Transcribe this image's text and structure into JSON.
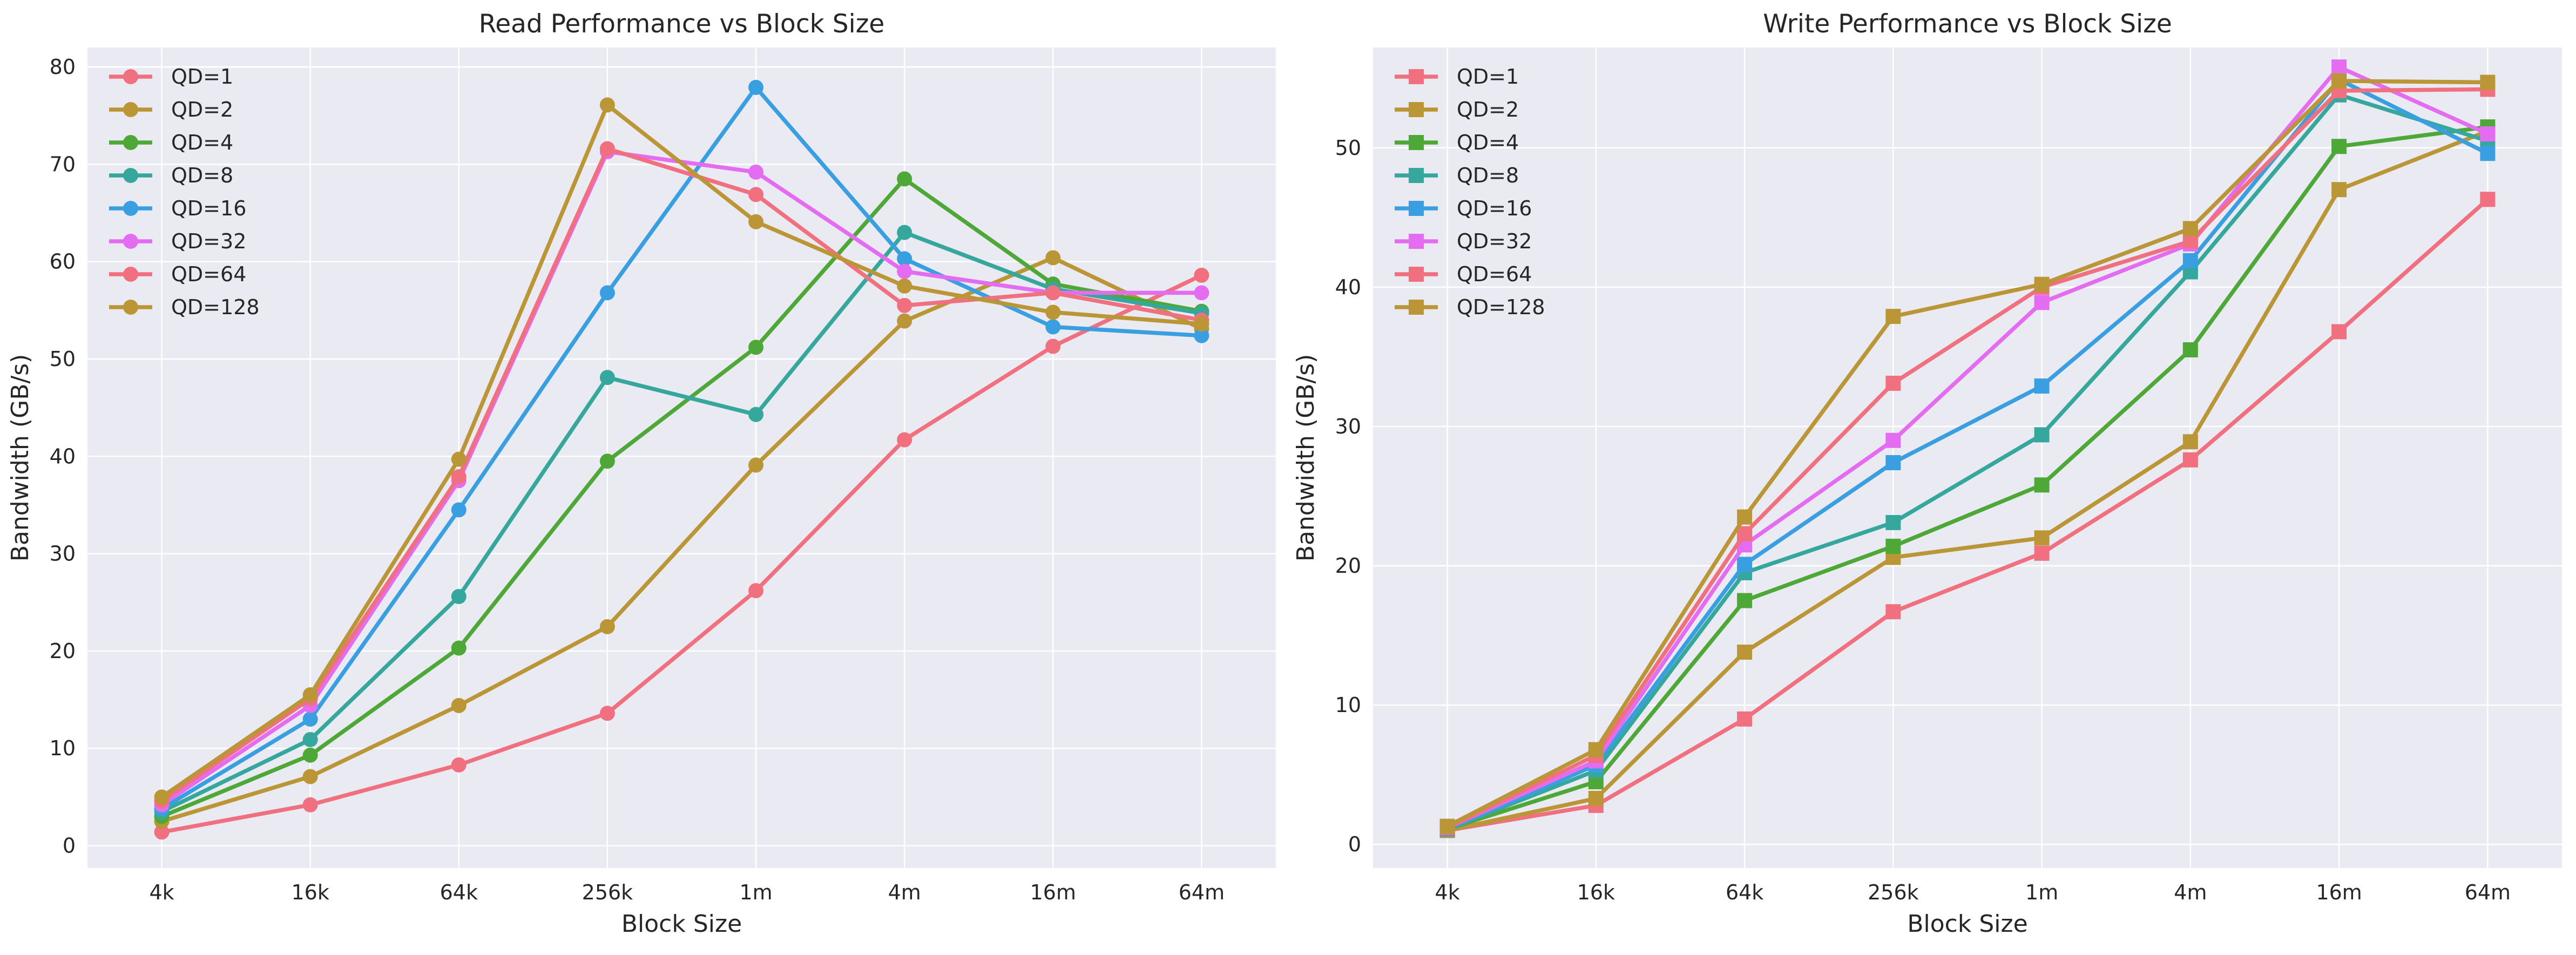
{
  "colors": {
    "QD=1": "#f0707f",
    "QD=2": "#bb9636",
    "QD=4": "#4ea837",
    "QD=8": "#36a79c",
    "QD=16": "#3a9fe0",
    "QD=32": "#e46cf0",
    "QD=64": "#f0707f",
    "QD=128": "#bb9636",
    "panel_bg": "#eaeaf2",
    "grid": "#ffffff"
  },
  "chart_data": [
    {
      "type": "line",
      "marker": "circle",
      "title": "Read Performance vs Block Size",
      "xlabel": "Block Size",
      "ylabel": "Bandwidth (GB/s)",
      "categories": [
        "4k",
        "16k",
        "64k",
        "256k",
        "1m",
        "4m",
        "16m",
        "64m"
      ],
      "ylim": [
        -2.3,
        82
      ],
      "yticks": [
        0,
        10,
        20,
        30,
        40,
        50,
        60,
        70,
        80
      ],
      "grid": true,
      "legend": "top-left",
      "series": [
        {
          "name": "QD=1",
          "values": [
            1.4,
            4.2,
            8.3,
            13.6,
            26.2,
            41.7,
            51.3,
            58.6
          ]
        },
        {
          "name": "QD=2",
          "values": [
            2.5,
            7.1,
            14.4,
            22.5,
            39.1,
            53.9,
            60.4,
            53.1
          ]
        },
        {
          "name": "QD=4",
          "values": [
            3.0,
            9.3,
            20.3,
            39.5,
            51.2,
            68.5,
            57.7,
            54.9
          ]
        },
        {
          "name": "QD=8",
          "values": [
            3.5,
            10.9,
            25.6,
            48.1,
            44.3,
            63.0,
            57.2,
            54.7
          ]
        },
        {
          "name": "QD=16",
          "values": [
            3.8,
            13.0,
            34.5,
            56.8,
            77.9,
            60.3,
            53.3,
            52.4
          ]
        },
        {
          "name": "QD=32",
          "values": [
            4.2,
            14.4,
            37.5,
            71.3,
            69.2,
            59.0,
            56.8,
            56.8
          ]
        },
        {
          "name": "QD=64",
          "values": [
            4.6,
            15.1,
            37.9,
            71.6,
            66.9,
            55.5,
            56.8,
            54.0
          ]
        },
        {
          "name": "QD=128",
          "values": [
            5.0,
            15.5,
            39.7,
            76.1,
            64.1,
            57.5,
            54.8,
            53.6
          ]
        }
      ]
    },
    {
      "type": "line",
      "marker": "square",
      "title": "Write Performance vs Block Size",
      "xlabel": "Block Size",
      "ylabel": "Bandwidth (GB/s)",
      "categories": [
        "4k",
        "16k",
        "64k",
        "256k",
        "1m",
        "4m",
        "16m",
        "64m"
      ],
      "ylim": [
        -1.7,
        57.2
      ],
      "yticks": [
        0,
        10,
        20,
        30,
        40,
        50
      ],
      "grid": true,
      "legend": "top-left",
      "series": [
        {
          "name": "QD=1",
          "values": [
            1.0,
            2.8,
            9.0,
            16.7,
            20.9,
            27.6,
            36.8,
            46.3
          ]
        },
        {
          "name": "QD=2",
          "values": [
            1.0,
            3.3,
            13.8,
            20.6,
            22.0,
            28.9,
            47.0,
            51.2
          ]
        },
        {
          "name": "QD=4",
          "values": [
            1.1,
            4.5,
            17.5,
            21.4,
            25.8,
            35.5,
            50.1,
            51.5
          ]
        },
        {
          "name": "QD=8",
          "values": [
            1.1,
            5.3,
            19.5,
            23.1,
            29.4,
            41.1,
            53.8,
            50.5
          ]
        },
        {
          "name": "QD=16",
          "values": [
            1.1,
            5.7,
            20.1,
            27.4,
            32.9,
            41.9,
            54.9,
            49.6
          ]
        },
        {
          "name": "QD=32",
          "values": [
            1.2,
            6.0,
            21.5,
            29.0,
            38.9,
            43.1,
            55.8,
            51.0
          ]
        },
        {
          "name": "QD=64",
          "values": [
            1.2,
            6.4,
            22.3,
            33.1,
            40.0,
            43.3,
            54.1,
            54.2
          ]
        },
        {
          "name": "QD=128",
          "values": [
            1.3,
            6.8,
            23.5,
            37.9,
            40.2,
            44.2,
            54.8,
            54.7
          ]
        }
      ]
    }
  ]
}
